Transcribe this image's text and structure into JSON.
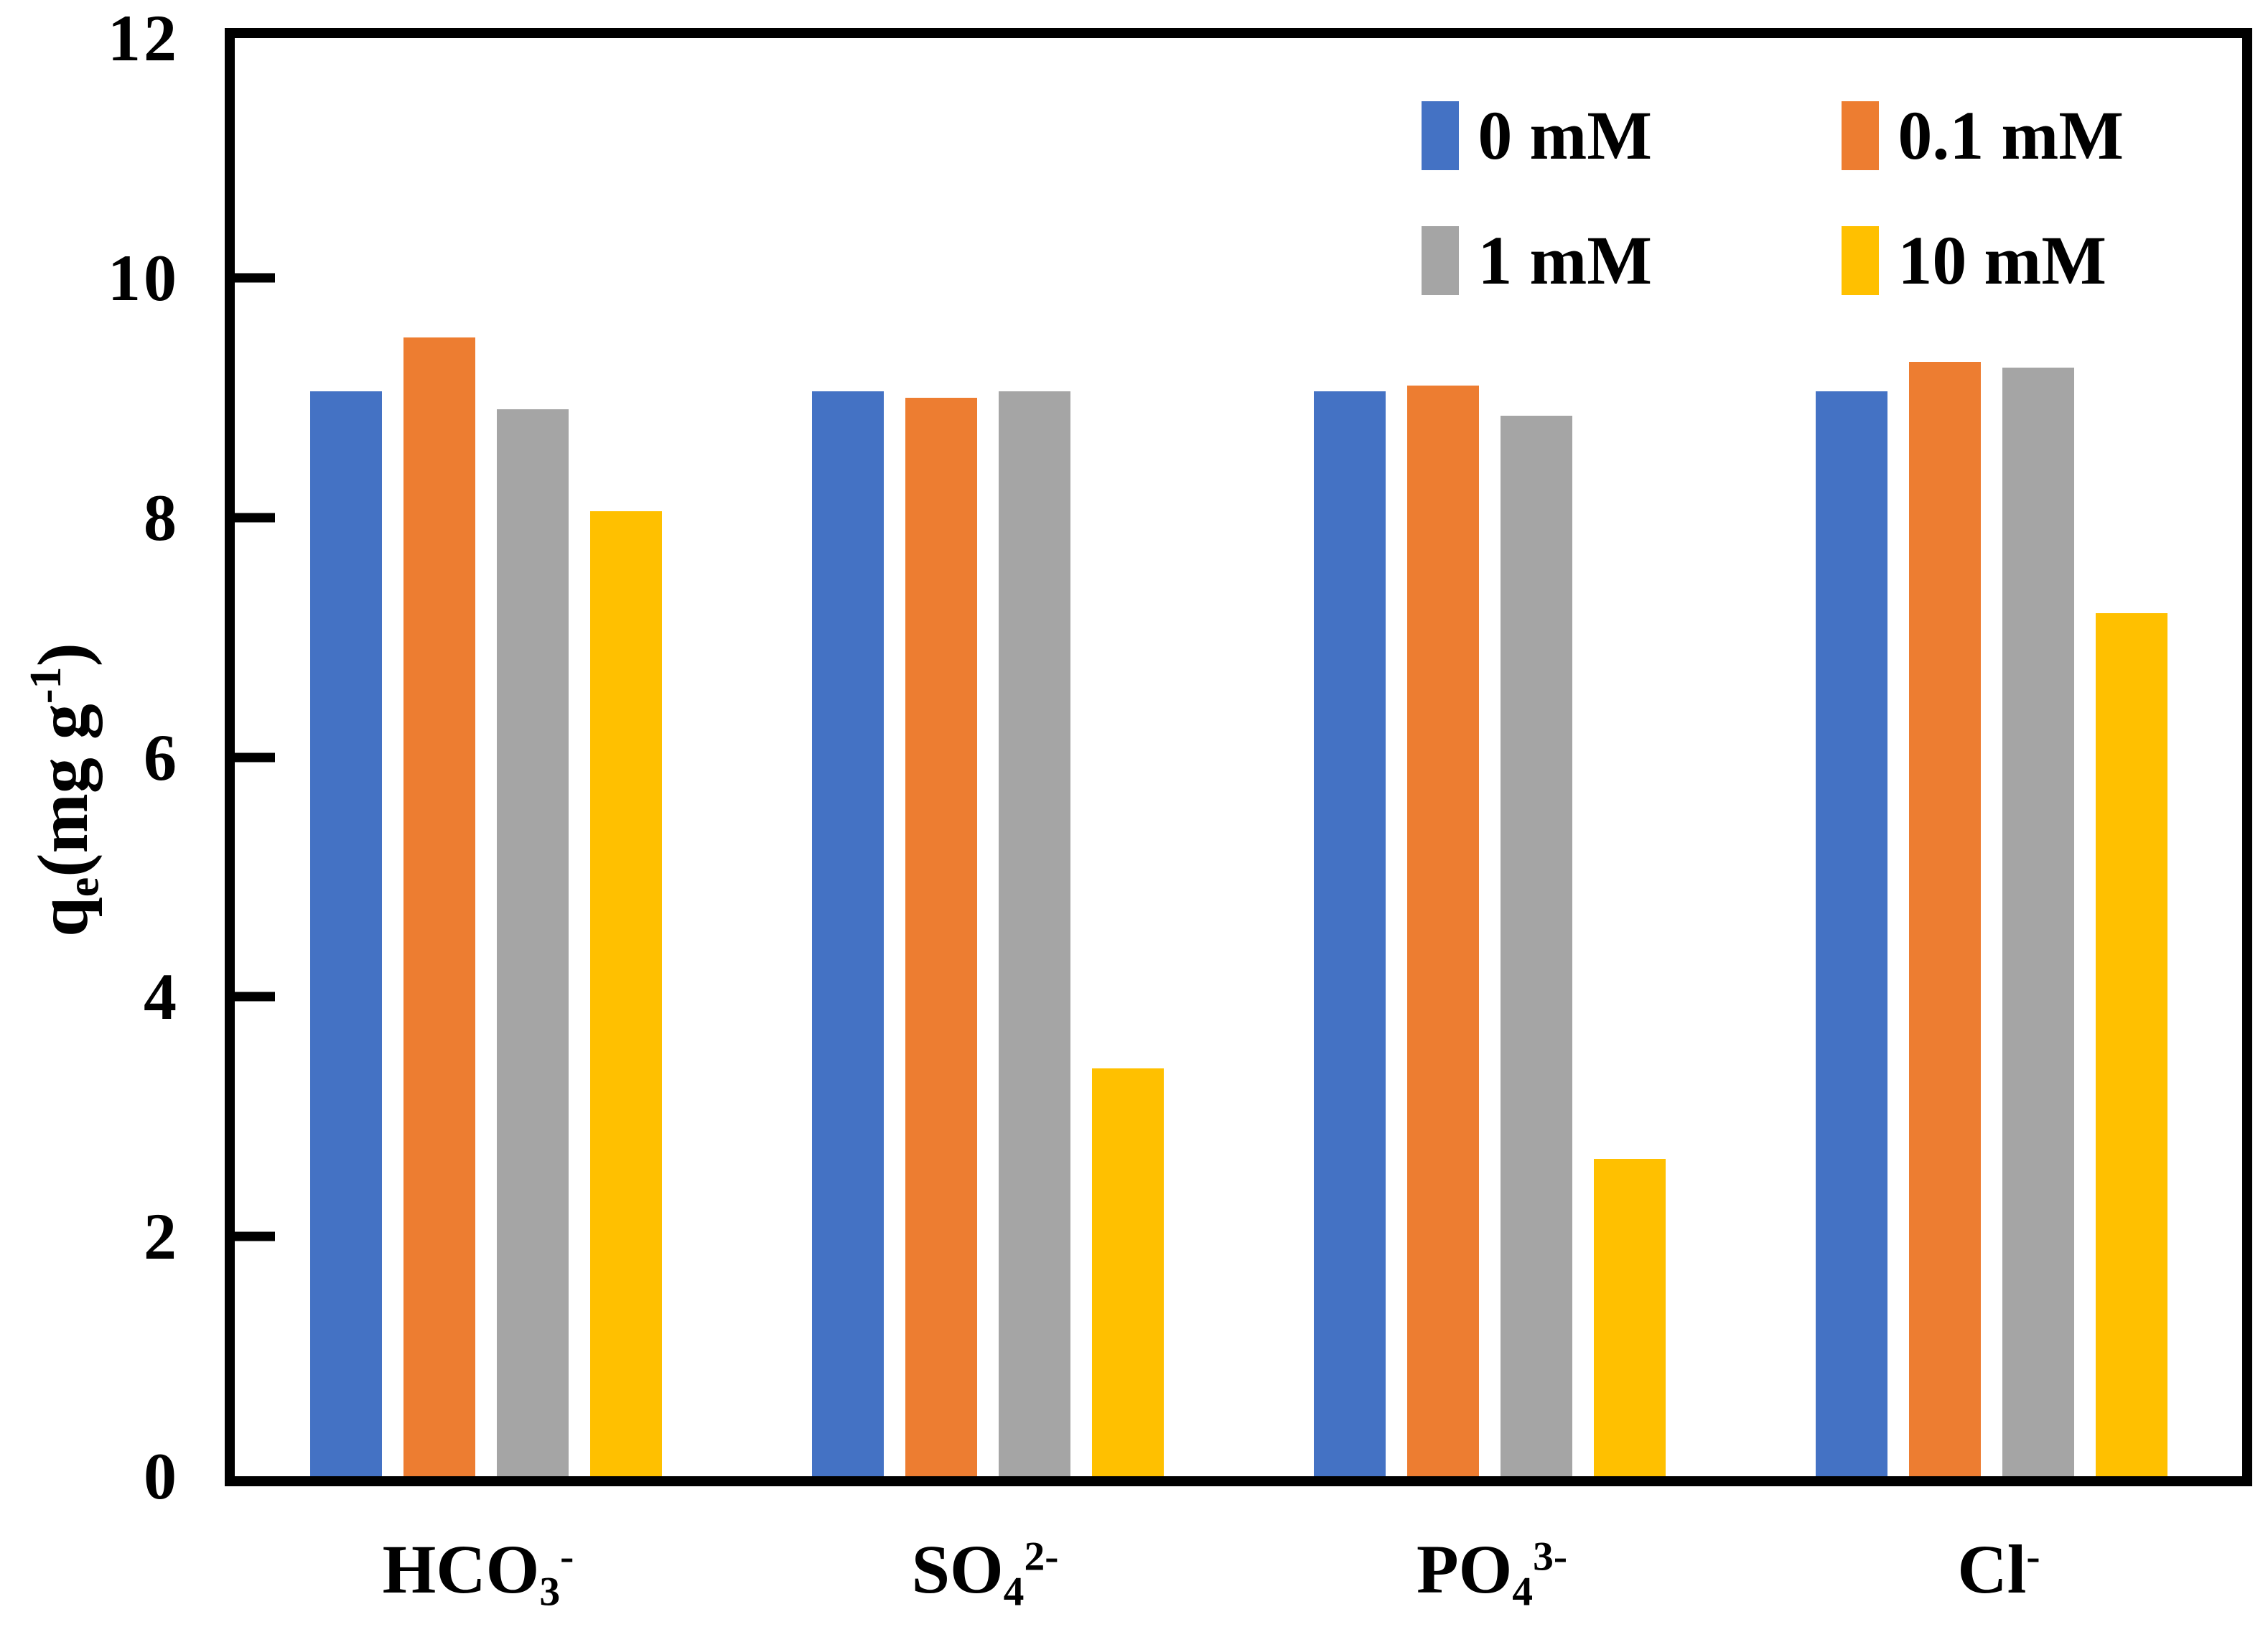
{
  "figure": {
    "background": "#ffffff",
    "axis_color": "#000000",
    "text_color": "#000000"
  },
  "y_axis": {
    "title_parts": {
      "base": "q",
      "sub": "e",
      "unit_open": "(mg g",
      "unit_sup": "-1",
      "unit_close": ")"
    },
    "ticks": [
      "0",
      "2",
      "4",
      "6",
      "8",
      "10",
      "12"
    ]
  },
  "chart_data": {
    "type": "bar",
    "title": "",
    "xlabel": "",
    "ylabel": "qe(mg g-1)",
    "ylim": [
      0,
      12
    ],
    "ytick_step": 2,
    "grid": false,
    "legend_position": "top-right-inside",
    "categories": [
      {
        "id": "hco3",
        "base": "HCO",
        "sub": "3",
        "sup": "-",
        "plain": "HCO3-"
      },
      {
        "id": "so4",
        "base": "SO",
        "sub": "4",
        "sup": "2-",
        "plain": "SO42-"
      },
      {
        "id": "po4",
        "base": "PO",
        "sub": "4",
        "sup": "3-",
        "plain": "PO43-"
      },
      {
        "id": "cl",
        "base": "Cl",
        "sub": "",
        "sup": "-",
        "plain": "Cl-"
      }
    ],
    "series": [
      {
        "name": "0 mM",
        "color": "#4472C4",
        "values": [
          9.05,
          9.05,
          9.05,
          9.05
        ]
      },
      {
        "name": "0.1 mM",
        "color": "#ED7D31",
        "values": [
          9.5,
          9.0,
          9.1,
          9.3
        ]
      },
      {
        "name": "1 mM",
        "color": "#A5A5A5",
        "values": [
          8.9,
          9.05,
          8.85,
          9.25
        ]
      },
      {
        "name": "10 mM",
        "color": "#FFC000",
        "values": [
          8.05,
          3.4,
          2.65,
          7.2
        ]
      }
    ]
  }
}
